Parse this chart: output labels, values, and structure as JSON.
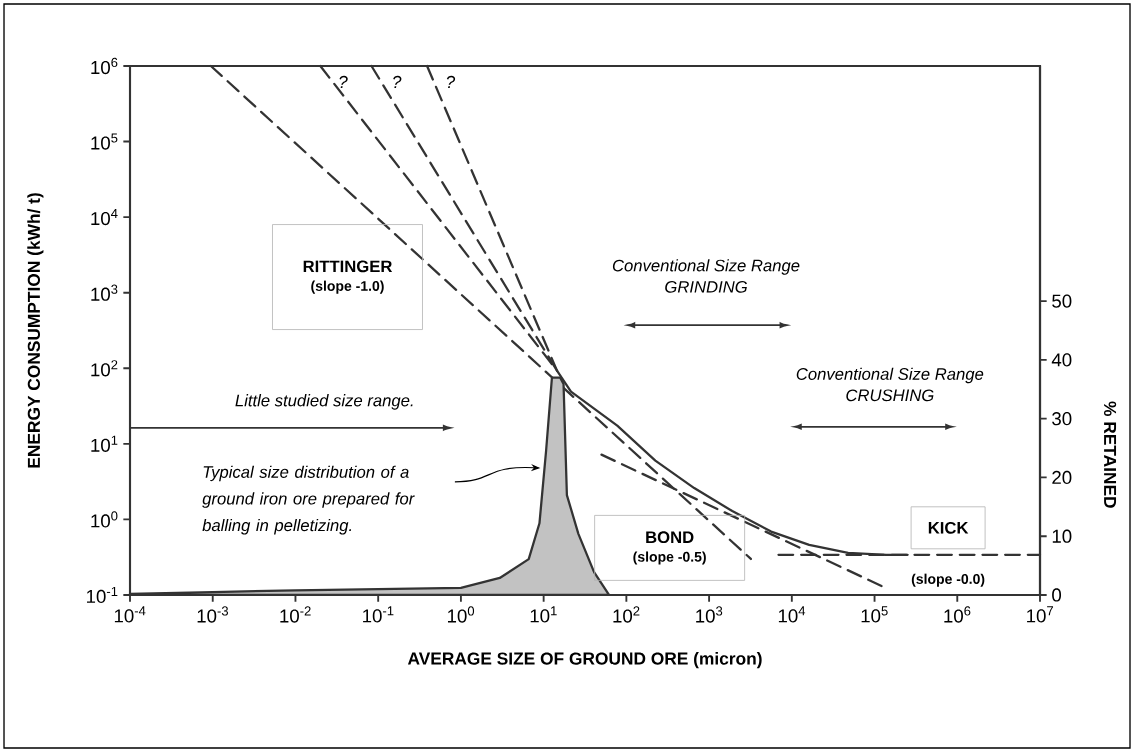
{
  "chart_data": {
    "type": "line",
    "xlabel": "AVERAGE SIZE OF GROUND ORE  (micron)",
    "ylabel": "ENERGY CONSUMPTION  (kWh/ t)",
    "y2label": "% RETAINED",
    "log": "xy",
    "xlim": [
      0.0001,
      10000000
    ],
    "ylim": [
      0.1,
      1000000
    ],
    "y2lim": [
      0,
      90
    ],
    "xticks": [
      {
        "value": 0.0001,
        "label": "10$^{-4}$"
      },
      {
        "value": 0.001,
        "label": "10$^{-3}$"
      },
      {
        "value": 0.01,
        "label": "10$^{-2}$"
      },
      {
        "value": 0.1,
        "label": "10$^{-1}$"
      },
      {
        "value": 1,
        "label": "10$^{0}$"
      },
      {
        "value": 10,
        "label": "10$^{1}$"
      },
      {
        "value": 100,
        "label": "10$^{2}$"
      },
      {
        "value": 1000,
        "label": "10$^{3}$"
      },
      {
        "value": 10000,
        "label": "10$^{4}$"
      },
      {
        "value": 100000,
        "label": "10$^{5}$"
      },
      {
        "value": 1000000,
        "label": "10$^{6}$"
      },
      {
        "value": 10000000,
        "label": "10$^{7}$"
      }
    ],
    "yticks": [
      {
        "value": 0.1,
        "label": "10$^{-1}$"
      },
      {
        "value": 1,
        "label": "10$^{0}$"
      },
      {
        "value": 10,
        "label": "10$^{1}$"
      },
      {
        "value": 100,
        "label": "10$^{2}$"
      },
      {
        "value": 1000,
        "label": "10$^{3}$"
      },
      {
        "value": 10000,
        "label": "10$^{4}$"
      },
      {
        "value": 100000,
        "label": "10$^{5}$"
      },
      {
        "value": 1000000,
        "label": "10$^{6}$"
      }
    ],
    "y2ticks": [
      0,
      10,
      20,
      30,
      40,
      50
    ],
    "series": [
      {
        "color": "#333333",
        "line_style": "solid",
        "x": [
          14.5,
          21.4,
          77.6,
          224,
          661,
          1905,
          5623,
          16200,
          47900,
          138000,
          251000
        ],
        "values": [
          93,
          49,
          17.4,
          6.0,
          2.6,
          1.29,
          0.69,
          0.46,
          0.36,
          0.34,
          0.34
        ]
      },
      {
        "color": "#333333",
        "line_style": "dashed",
        "x": [
          0.00095,
          3200
        ],
        "values": [
          1000000,
          0.3
        ]
      },
      {
        "color": "#333333",
        "line_style": "dashed",
        "x": [
          0.02,
          14.5
        ],
        "values": [
          1000000,
          93
        ]
      },
      {
        "color": "#333333",
        "line_style": "dashed",
        "x": [
          0.083,
          14.5
        ],
        "values": [
          1000000,
          93
        ]
      },
      {
        "color": "#333333",
        "line_style": "dashed",
        "x": [
          0.39,
          14.5
        ],
        "values": [
          1000000,
          93
        ]
      },
      {
        "color": "#333333",
        "line_style": "dashed",
        "x": [
          50,
          132000
        ],
        "values": [
          7.2,
          0.126
        ]
      },
      {
        "color": "#333333",
        "line_style": "dashed",
        "x": [
          6900,
          10000000
        ],
        "values": [
          0.34,
          0.34
        ]
      },
      {
        "type": "area",
        "axis": "y2",
        "color": "#333333",
        "line_style": "solid",
        "x": [
          0.0001,
          0.001,
          0.01,
          0.1,
          1,
          2.95,
          6.6,
          8.9,
          10.7,
          12.6,
          15.8,
          17.4,
          19.1,
          26.3,
          40.7,
          61.7
        ],
        "values": [
          0.2,
          0.5,
          0.8,
          1,
          1.2,
          2.9,
          6.1,
          12.2,
          24.5,
          37,
          37,
          35.9,
          17,
          10.4,
          3.9,
          0
        ]
      }
    ],
    "annotations": [
      "RITTINGER",
      "(slope -1.0)",
      "Conventional Size Range",
      "GRINDING",
      "Conventional Size Range",
      "CRUSHING",
      "Little studied size range.",
      "Typical size distribution  of a ground iron ore prepared for balling in pelletizing.",
      "BOND",
      "(slope -0.5)",
      "KICK",
      "(slope -0.0)",
      "?",
      "?",
      "?"
    ]
  }
}
